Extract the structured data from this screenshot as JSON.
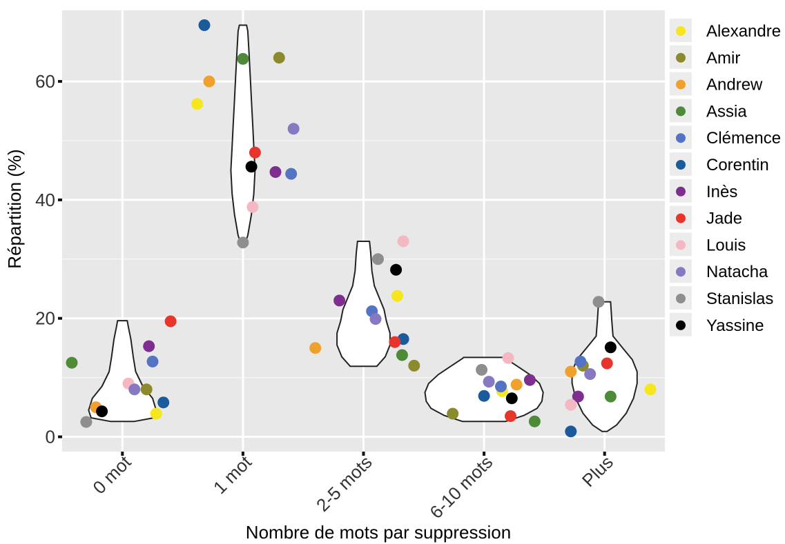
{
  "chart_data": {
    "type": "scatter",
    "subtype": "violin-jitter",
    "title": "",
    "xlabel": "Nombre de mots par suppression",
    "ylabel": "Répartition (%)",
    "categories": [
      "0 mot",
      "1 mot",
      "2-5 mots",
      "6-10 mots",
      "Plus"
    ],
    "ylim": [
      -2.5,
      72
    ],
    "yticks": [
      0,
      20,
      40,
      60
    ],
    "grid": true,
    "legend_position": "right",
    "series": [
      {
        "name": "Alexandre",
        "color": "#f5e61d",
        "points": [
          {
            "x": "0 mot",
            "jitter": 0.28,
            "y": 3.9
          },
          {
            "x": "1 mot",
            "jitter": -0.38,
            "y": 56.2
          },
          {
            "x": "2-5 mots",
            "jitter": 0.28,
            "y": 23.8
          },
          {
            "x": "6-10 mots",
            "jitter": 0.15,
            "y": 7.7
          },
          {
            "x": "Plus",
            "jitter": 0.38,
            "y": 8.0
          }
        ]
      },
      {
        "name": "Amir",
        "color": "#8b8b2e",
        "points": [
          {
            "x": "0 mot",
            "jitter": 0.2,
            "y": 8.0
          },
          {
            "x": "1 mot",
            "jitter": 0.3,
            "y": 64.0
          },
          {
            "x": "2-5 mots",
            "jitter": 0.42,
            "y": 12.0
          },
          {
            "x": "6-10 mots",
            "jitter": -0.26,
            "y": 3.9
          },
          {
            "x": "Plus",
            "jitter": -0.18,
            "y": 12.0
          }
        ]
      },
      {
        "name": "Andrew",
        "color": "#f0a12d",
        "points": [
          {
            "x": "0 mot",
            "jitter": -0.22,
            "y": 5.0
          },
          {
            "x": "1 mot",
            "jitter": -0.28,
            "y": 60.0
          },
          {
            "x": "2-5 mots",
            "jitter": -0.4,
            "y": 15.0
          },
          {
            "x": "6-10 mots",
            "jitter": 0.27,
            "y": 8.8
          },
          {
            "x": "Plus",
            "jitter": -0.28,
            "y": 11.0
          }
        ]
      },
      {
        "name": "Assia",
        "color": "#4e8a38",
        "points": [
          {
            "x": "0 mot",
            "jitter": -0.42,
            "y": 12.5
          },
          {
            "x": "1 mot",
            "jitter": 0.0,
            "y": 63.8
          },
          {
            "x": "2-5 mots",
            "jitter": 0.32,
            "y": 13.8
          },
          {
            "x": "6-10 mots",
            "jitter": 0.42,
            "y": 2.6
          },
          {
            "x": "Plus",
            "jitter": 0.05,
            "y": 6.8
          }
        ]
      },
      {
        "name": "Clémence",
        "color": "#5474c3",
        "points": [
          {
            "x": "0 mot",
            "jitter": 0.25,
            "y": 12.7
          },
          {
            "x": "1 mot",
            "jitter": 0.4,
            "y": 44.4
          },
          {
            "x": "2-5 mots",
            "jitter": 0.07,
            "y": 21.2
          },
          {
            "x": "6-10 mots",
            "jitter": 0.14,
            "y": 8.5
          },
          {
            "x": "Plus",
            "jitter": -0.2,
            "y": 12.7
          }
        ]
      },
      {
        "name": "Corentin",
        "color": "#1b5a9b",
        "points": [
          {
            "x": "0 mot",
            "jitter": 0.34,
            "y": 5.8
          },
          {
            "x": "1 mot",
            "jitter": -0.32,
            "y": 69.5
          },
          {
            "x": "2-5 mots",
            "jitter": 0.33,
            "y": 16.5
          },
          {
            "x": "6-10 mots",
            "jitter": 0.0,
            "y": 6.9
          },
          {
            "x": "Plus",
            "jitter": -0.28,
            "y": 0.9
          }
        ]
      },
      {
        "name": "Inès",
        "color": "#7d2e8f",
        "points": [
          {
            "x": "0 mot",
            "jitter": 0.22,
            "y": 15.3
          },
          {
            "x": "1 mot",
            "jitter": 0.27,
            "y": 44.7
          },
          {
            "x": "2-5 mots",
            "jitter": -0.2,
            "y": 23.0
          },
          {
            "x": "6-10 mots",
            "jitter": 0.38,
            "y": 9.6
          },
          {
            "x": "Plus",
            "jitter": -0.22,
            "y": 6.8
          }
        ]
      },
      {
        "name": "Jade",
        "color": "#e8352b",
        "points": [
          {
            "x": "0 mot",
            "jitter": 0.4,
            "y": 19.5
          },
          {
            "x": "1 mot",
            "jitter": 0.1,
            "y": 48.0
          },
          {
            "x": "2-5 mots",
            "jitter": 0.26,
            "y": 16.0
          },
          {
            "x": "6-10 mots",
            "jitter": 0.22,
            "y": 3.5
          },
          {
            "x": "Plus",
            "jitter": 0.02,
            "y": 12.4
          }
        ]
      },
      {
        "name": "Louis",
        "color": "#f4b8c2",
        "points": [
          {
            "x": "0 mot",
            "jitter": 0.05,
            "y": 9.0
          },
          {
            "x": "1 mot",
            "jitter": 0.08,
            "y": 38.8
          },
          {
            "x": "2-5 mots",
            "jitter": 0.33,
            "y": 33.0
          },
          {
            "x": "6-10 mots",
            "jitter": 0.2,
            "y": 13.3
          },
          {
            "x": "Plus",
            "jitter": -0.28,
            "y": 5.4
          }
        ]
      },
      {
        "name": "Natacha",
        "color": "#8679c2",
        "points": [
          {
            "x": "0 mot",
            "jitter": 0.1,
            "y": 8.0
          },
          {
            "x": "1 mot",
            "jitter": 0.42,
            "y": 52.0
          },
          {
            "x": "2-5 mots",
            "jitter": 0.1,
            "y": 19.9
          },
          {
            "x": "6-10 mots",
            "jitter": 0.04,
            "y": 9.3
          },
          {
            "x": "Plus",
            "jitter": -0.12,
            "y": 10.6
          }
        ]
      },
      {
        "name": "Stanislas",
        "color": "#8e8e8e",
        "points": [
          {
            "x": "0 mot",
            "jitter": -0.3,
            "y": 2.5
          },
          {
            "x": "1 mot",
            "jitter": 0.0,
            "y": 32.8
          },
          {
            "x": "2-5 mots",
            "jitter": 0.12,
            "y": 30.0
          },
          {
            "x": "6-10 mots",
            "jitter": -0.02,
            "y": 11.3
          },
          {
            "x": "Plus",
            "jitter": -0.05,
            "y": 22.8
          }
        ]
      },
      {
        "name": "Yassine",
        "color": "#000000",
        "points": [
          {
            "x": "0 mot",
            "jitter": -0.17,
            "y": 4.3
          },
          {
            "x": "1 mot",
            "jitter": 0.07,
            "y": 45.6
          },
          {
            "x": "2-5 mots",
            "jitter": 0.27,
            "y": 28.2
          },
          {
            "x": "6-10 mots",
            "jitter": 0.23,
            "y": 6.5
          },
          {
            "x": "Plus",
            "jitter": 0.05,
            "y": 15.1
          }
        ]
      }
    ],
    "violins": [
      {
        "category": "0 mot",
        "profile": [
          [
            2.6,
            0.1
          ],
          [
            3.2,
            0.26
          ],
          [
            4.5,
            0.28
          ],
          [
            6.5,
            0.25
          ],
          [
            8.5,
            0.17
          ],
          [
            11.0,
            0.11
          ],
          [
            13.5,
            0.09
          ],
          [
            16.5,
            0.07
          ],
          [
            18.5,
            0.05
          ],
          [
            19.6,
            0.04
          ]
        ]
      },
      {
        "category": "1 mot",
        "profile": [
          [
            32.8,
            0.02
          ],
          [
            34.0,
            0.04
          ],
          [
            37.5,
            0.07
          ],
          [
            41.0,
            0.09
          ],
          [
            45.0,
            0.1
          ],
          [
            49.0,
            0.09
          ],
          [
            53.0,
            0.08
          ],
          [
            57.0,
            0.07
          ],
          [
            61.0,
            0.06
          ],
          [
            65.0,
            0.05
          ],
          [
            68.5,
            0.04
          ],
          [
            69.5,
            0.03
          ]
        ]
      },
      {
        "category": "2-5 mots",
        "profile": [
          [
            11.9,
            0.11
          ],
          [
            13.5,
            0.18
          ],
          [
            15.5,
            0.22
          ],
          [
            17.5,
            0.22
          ],
          [
            19.5,
            0.19
          ],
          [
            21.5,
            0.17
          ],
          [
            23.5,
            0.13
          ],
          [
            25.5,
            0.09
          ],
          [
            28.0,
            0.07
          ],
          [
            31.0,
            0.06
          ],
          [
            33.0,
            0.05
          ]
        ]
      },
      {
        "category": "6-10 mots",
        "profile": [
          [
            2.6,
            0.18
          ],
          [
            3.6,
            0.33
          ],
          [
            4.8,
            0.44
          ],
          [
            6.0,
            0.48
          ],
          [
            7.5,
            0.49
          ],
          [
            9.0,
            0.46
          ],
          [
            10.5,
            0.38
          ],
          [
            12.0,
            0.27
          ],
          [
            13.2,
            0.18
          ],
          [
            13.4,
            0.17
          ]
        ]
      },
      {
        "category": "Plus",
        "profile": [
          [
            0.9,
            0.02
          ],
          [
            2.0,
            0.1
          ],
          [
            4.0,
            0.18
          ],
          [
            6.5,
            0.24
          ],
          [
            9.0,
            0.27
          ],
          [
            11.0,
            0.27
          ],
          [
            13.0,
            0.23
          ],
          [
            15.0,
            0.15
          ],
          [
            17.0,
            0.07
          ],
          [
            19.5,
            0.06
          ],
          [
            22.8,
            0.05
          ]
        ]
      }
    ]
  }
}
